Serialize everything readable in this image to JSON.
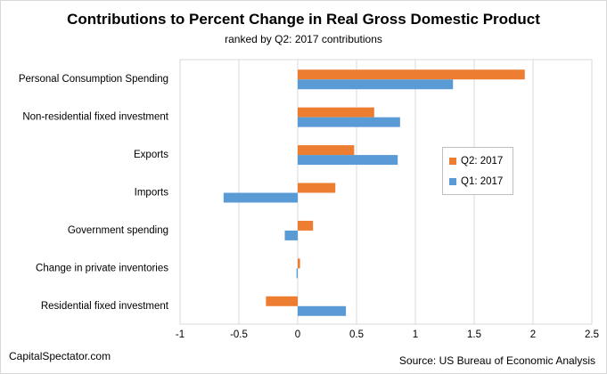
{
  "chart_data": {
    "type": "bar",
    "orientation": "horizontal",
    "title": "Contributions to Percent Change in Real Gross Domestic Product",
    "subtitle": "ranked by Q2: 2017 contributions",
    "categories": [
      "Personal Consumption Spending",
      "Non-residential fixed investment",
      "Exports",
      "Imports",
      "Government spending",
      "Change in private inventories",
      "Residential fixed investment"
    ],
    "series": [
      {
        "name": "Q2: 2017",
        "color": "#ed7d31",
        "values": [
          1.93,
          0.65,
          0.48,
          0.32,
          0.13,
          0.02,
          -0.27
        ]
      },
      {
        "name": "Q1: 2017",
        "color": "#5b9bd5",
        "values": [
          1.32,
          0.87,
          0.85,
          -0.63,
          -0.11,
          -0.01,
          0.41
        ]
      }
    ],
    "xlim": [
      -1,
      2.5
    ],
    "xticks": [
      "-1",
      "-0.5",
      "0",
      "0.5",
      "1",
      "1.5",
      "2",
      "2.5"
    ],
    "xtick_values": [
      -1,
      -0.5,
      0,
      0.5,
      1,
      1.5,
      2,
      2.5
    ],
    "grid": true,
    "legend_position": "right"
  },
  "footer": {
    "left": "CapitalSpectator.com",
    "right": "Source: US Bureau of Economic Analysis"
  }
}
